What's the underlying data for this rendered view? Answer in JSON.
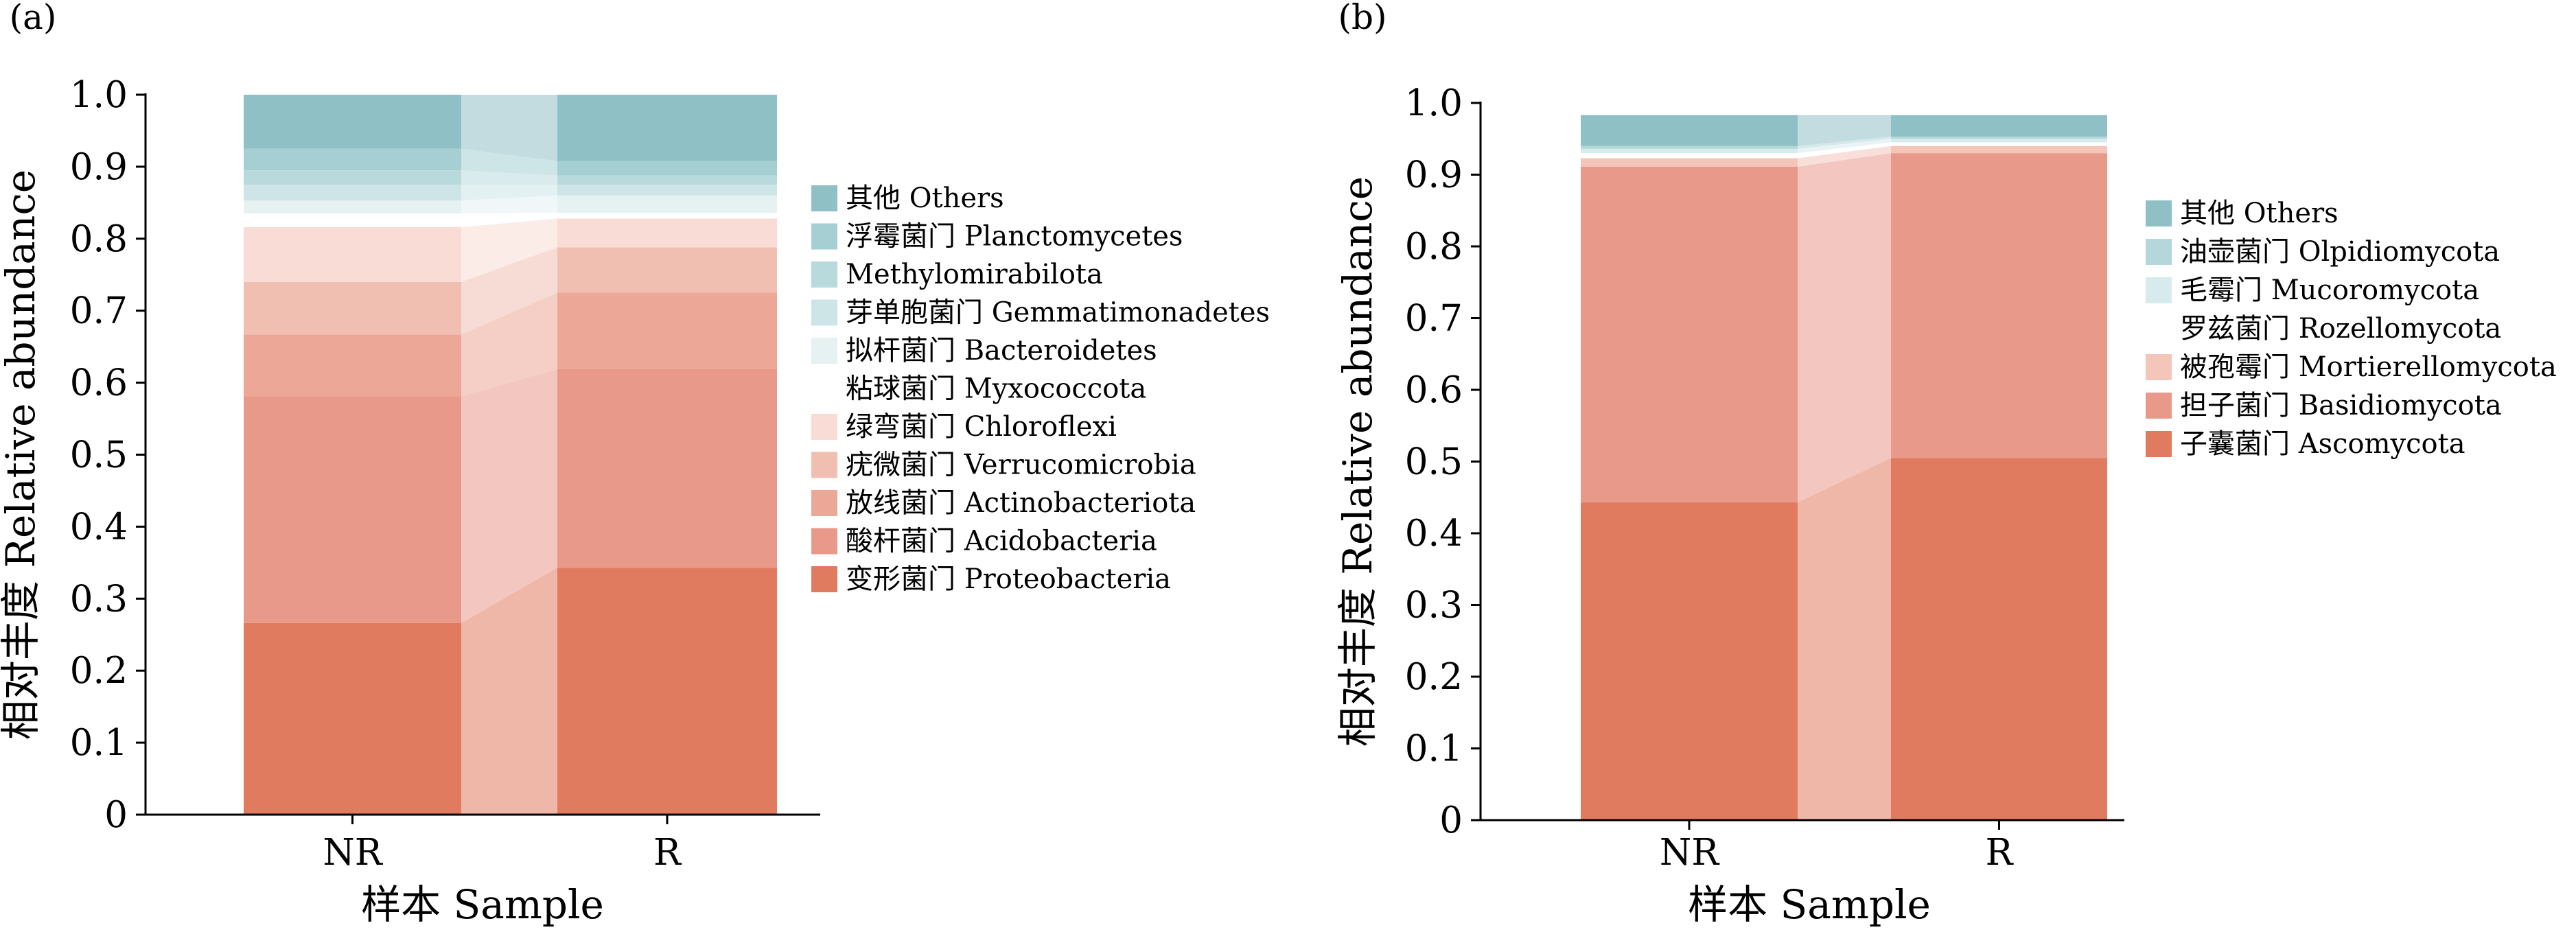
{
  "chart_data": [
    {
      "type": "stacked-bar",
      "panel_label": "(a)",
      "categories": [
        "NR",
        "R"
      ],
      "xlabel": "样本 Sample",
      "ylabel": "相对丰度 Relative abundance",
      "ylim": [
        0,
        1.0
      ],
      "yticks": [
        "0",
        "0.1",
        "0.2",
        "0.3",
        "0.4",
        "0.5",
        "0.6",
        "0.7",
        "0.8",
        "0.9",
        "1.0"
      ],
      "series": [
        {
          "name": "变形菌门 Proteobacteria",
          "color": "#e07b60",
          "values": [
            0.266,
            0.343
          ]
        },
        {
          "name": "酸杆菌门 Acidobacteria",
          "color": "#e9998a",
          "values": [
            0.315,
            0.276
          ]
        },
        {
          "name": "放线菌门 Actinobacteriota",
          "color": "#eda797",
          "values": [
            0.086,
            0.106
          ]
        },
        {
          "name": "疣微菌门 Verrucomicrobia",
          "color": "#f1bfb2",
          "values": [
            0.073,
            0.063
          ]
        },
        {
          "name": "绿弯菌门 Chloroflexi",
          "color": "#f9dcd5",
          "values": [
            0.076,
            0.04
          ]
        },
        {
          "name": "粘球菌门 Myxococcota",
          "color": "#ffffff",
          "values": [
            0.019,
            0.008
          ]
        },
        {
          "name": "拟杆菌门 Bacteroidetes",
          "color": "#e6f1f2",
          "values": [
            0.018,
            0.024
          ]
        },
        {
          "name": "芽单胞菌门 Gemmatimonadetes",
          "color": "#cde5e7",
          "values": [
            0.022,
            0.015
          ]
        },
        {
          "name": "Methylomirabilota",
          "color": "#b9dadd",
          "values": [
            0.02,
            0.013
          ]
        },
        {
          "name": "浮霉菌门 Planctomycetes",
          "color": "#a5cfd3",
          "values": [
            0.03,
            0.02
          ]
        },
        {
          "name": "其他 Others",
          "color": "#8fc0c5",
          "values": [
            0.075,
            0.092
          ]
        }
      ]
    },
    {
      "type": "stacked-bar",
      "panel_label": "(b)",
      "categories": [
        "NR",
        "R"
      ],
      "xlabel": "样本 Sample",
      "ylabel": "相对丰度 Relative abundance",
      "ylim": [
        0,
        1.0
      ],
      "yticks": [
        "0",
        "0.1",
        "0.2",
        "0.3",
        "0.4",
        "0.5",
        "0.6",
        "0.7",
        "0.8",
        "0.9",
        "1.0"
      ],
      "series": [
        {
          "name": "子囊菌门 Ascomycota",
          "color": "#e07b60",
          "values": [
            0.443,
            0.505
          ]
        },
        {
          "name": "担子菌门 Basidiomycota",
          "color": "#e9998a",
          "values": [
            0.468,
            0.425
          ]
        },
        {
          "name": "被孢霉门 Mortierellomycota",
          "color": "#f4c5b9",
          "values": [
            0.012,
            0.01
          ]
        },
        {
          "name": "罗兹菌门 Rozellomycota",
          "color": "#ffffff",
          "values": [
            0.007,
            0.005
          ]
        },
        {
          "name": "毛霉门 Mucoromycota",
          "color": "#d7eaec",
          "values": [
            0.006,
            0.005
          ]
        },
        {
          "name": "油壶菌门 Olpidiomycota",
          "color": "#b3d7da",
          "values": [
            0.004,
            0.003
          ]
        },
        {
          "name": "其他 Others",
          "color": "#8fc0c5",
          "values": [
            0.043,
            0.03
          ]
        }
      ]
    }
  ]
}
